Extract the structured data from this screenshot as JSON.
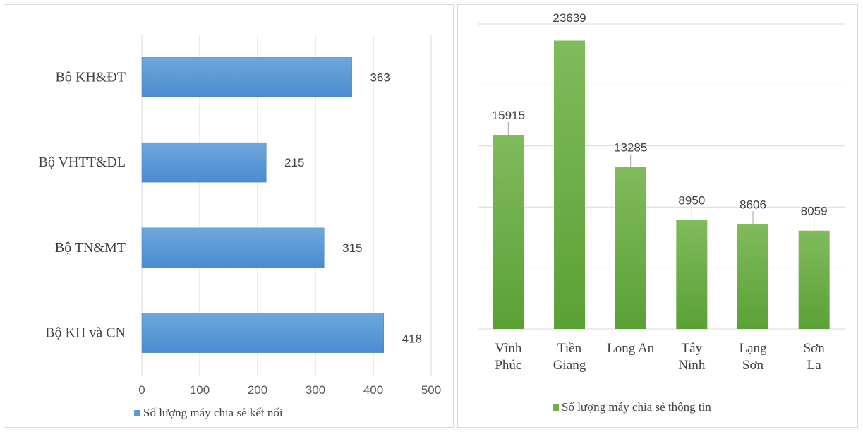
{
  "chart_data": [
    {
      "type": "bar",
      "orientation": "horizontal",
      "categories": [
        "Bộ KH&ĐT",
        "Bộ VHTT&DL",
        "Bộ TN&MT",
        "Bộ KH và CN"
      ],
      "series": [
        {
          "name": "Số lượng máy chia sẻ kết nối",
          "values": [
            363,
            215,
            315,
            418
          ]
        }
      ],
      "xlim": [
        0,
        500
      ],
      "xticks": [
        0,
        100,
        200,
        300,
        400,
        500
      ],
      "grid": true,
      "legend": "bottom",
      "color": "#5b9bd5"
    },
    {
      "type": "bar",
      "orientation": "vertical",
      "categories": [
        "Vĩnh Phúc",
        "Tiền Giang",
        "Long An",
        "Tây Ninh",
        "Lạng Sơn",
        "Sơn La"
      ],
      "series": [
        {
          "name": "Số lượng máy chia sẻ thông tin",
          "values": [
            15915,
            23639,
            13285,
            8950,
            8606,
            8059
          ]
        }
      ],
      "ylim": [
        0,
        25000
      ],
      "grid": true,
      "legend": "bottom",
      "color": "#70ad47"
    }
  ]
}
